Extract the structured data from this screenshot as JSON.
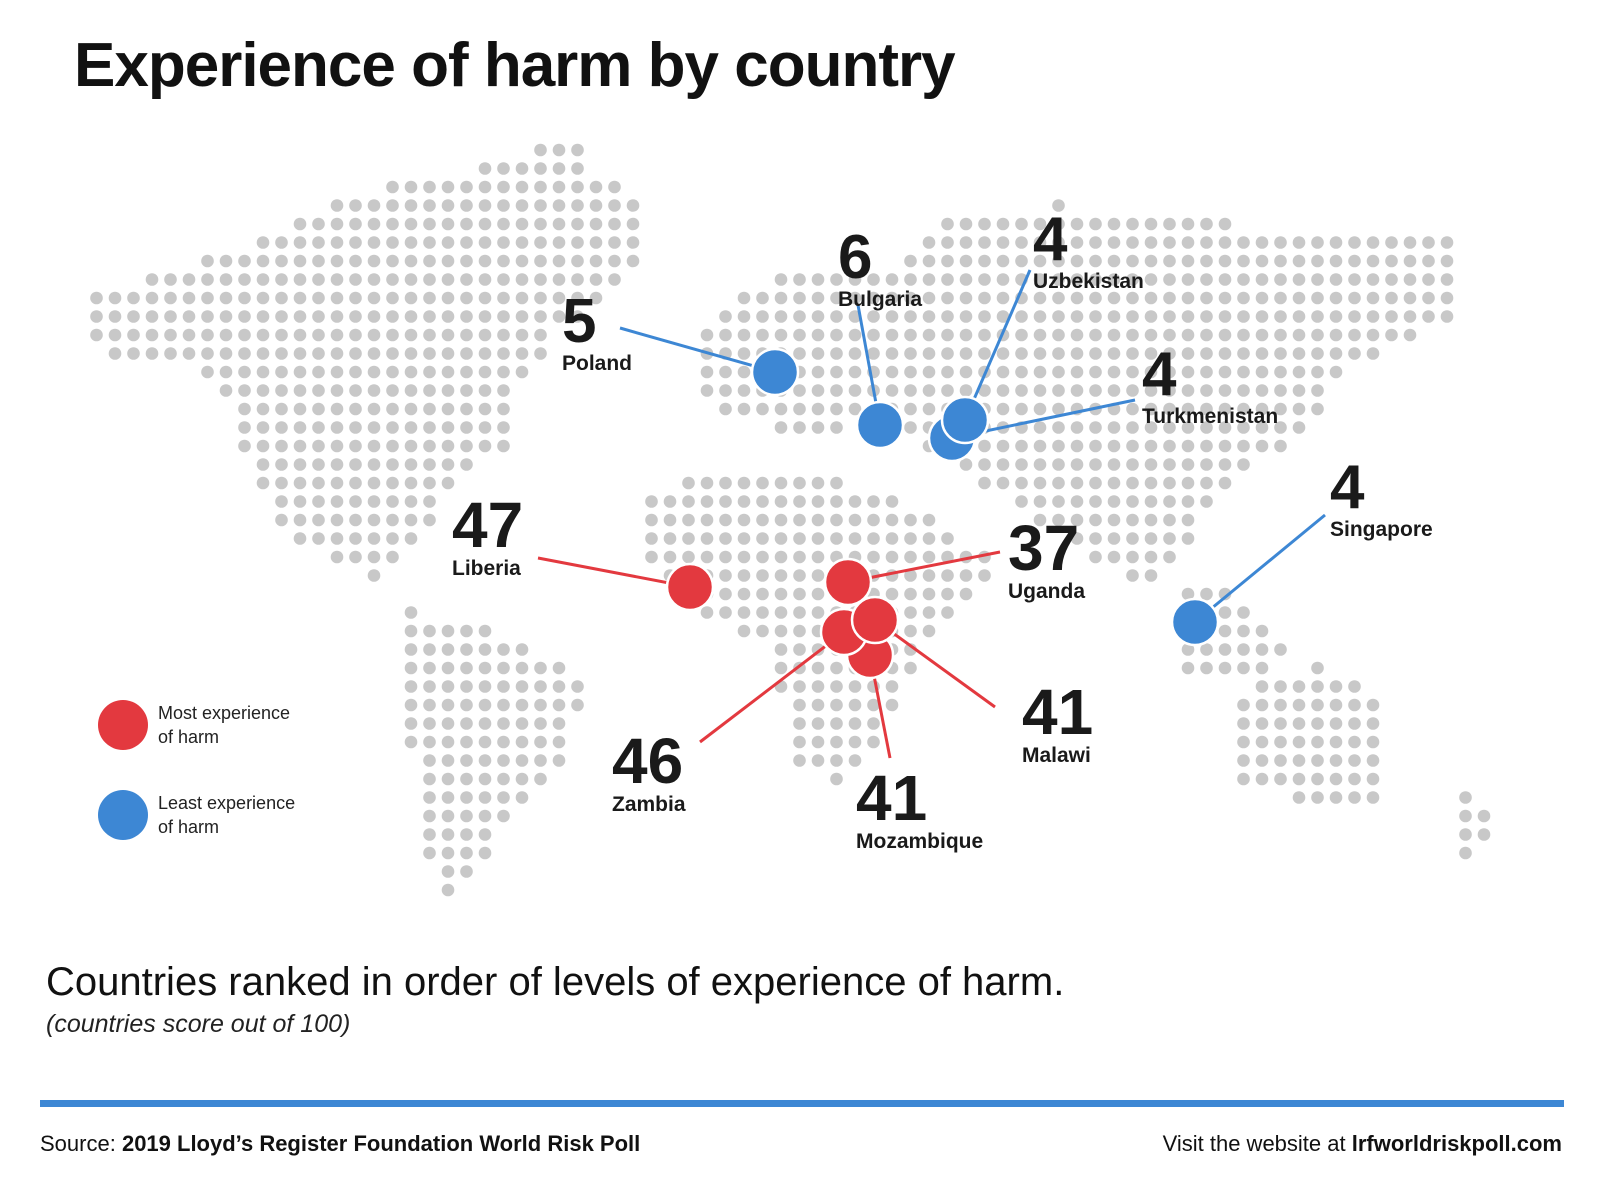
{
  "title": "Experience of harm by country",
  "legend": {
    "most": {
      "label": "Most experience of harm",
      "color": "#e3393f"
    },
    "least": {
      "label": "Least experience of harm",
      "color": "#3d87d4"
    }
  },
  "colors": {
    "dot": "#c8c8c8",
    "most": "#e3393f",
    "least": "#3d87d4"
  },
  "subtitle": "Countries ranked in order of  levels of experience of harm.",
  "note": "(countries score out of 100)",
  "footer": {
    "source_prefix": "Source:",
    "source_name": "2019 Lloyd’s Register Foundation World Risk Poll",
    "visit_prefix": "Visit the website at",
    "visit_site": "lrfworldriskpoll.com"
  },
  "countries": [
    {
      "name": "Poland",
      "score": "5",
      "group": "least"
    },
    {
      "name": "Bulgaria",
      "score": "6",
      "group": "least"
    },
    {
      "name": "Uzbekistan",
      "score": "4",
      "group": "least"
    },
    {
      "name": "Turkmenistan",
      "score": "4",
      "group": "least"
    },
    {
      "name": "Singapore",
      "score": "4",
      "group": "least"
    },
    {
      "name": "Liberia",
      "score": "47",
      "group": "most"
    },
    {
      "name": "Uganda",
      "score": "37",
      "group": "most"
    },
    {
      "name": "Zambia",
      "score": "46",
      "group": "most"
    },
    {
      "name": "Mozambique",
      "score": "41",
      "group": "most"
    },
    {
      "name": "Malawi",
      "score": "41",
      "group": "most"
    }
  ]
}
